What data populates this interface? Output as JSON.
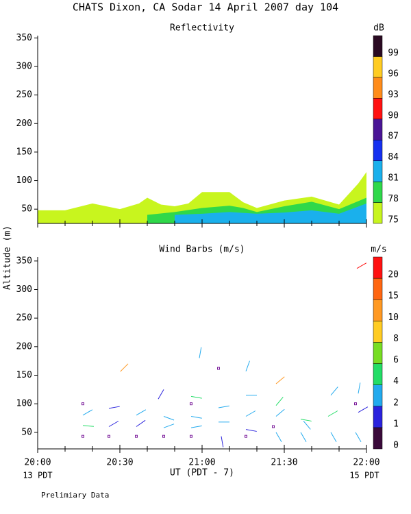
{
  "title": "CHATS Dixon, CA  Sodar  14 April 2007  day 104",
  "y_label": "Altitude (m)",
  "x_label": "UT  (PDT - 7)",
  "x_start_label": "13 PDT",
  "x_end_label": "15 PDT",
  "footnote": "Prelimiary Data",
  "chart_data": [
    {
      "type": "contour",
      "title": "Reflectivity",
      "xlim": [
        0,
        120
      ],
      "ylim": [
        25,
        354
      ],
      "xticks": [
        {
          "value": 0,
          "label": "20:00"
        },
        {
          "value": 30,
          "label": "20:30"
        },
        {
          "value": 60,
          "label": "21:00"
        },
        {
          "value": 90,
          "label": "21:30"
        },
        {
          "value": 120,
          "label": "22:00"
        }
      ],
      "xminorticks": [
        10,
        20,
        40,
        50,
        70,
        80,
        100,
        110
      ],
      "yticks": [
        50,
        100,
        150,
        200,
        250,
        300,
        350
      ],
      "colorbar": {
        "unit": "dB",
        "levels": [
          75,
          78,
          81,
          84,
          87,
          90,
          93,
          96,
          99
        ],
        "colors": [
          "#c8f51e",
          "#2fd84a",
          "#1ab0ec",
          "#1530f0",
          "#4a1596",
          "#ff1111",
          "#ff8c1a",
          "#ffcc22",
          "#2a0a22"
        ]
      },
      "series": [
        {
          "color": "#c8f51e",
          "x": [
            0,
            10,
            20,
            30,
            37,
            40,
            45,
            50,
            55,
            60,
            70,
            75,
            80,
            90,
            100,
            110,
            117,
            120
          ],
          "values": [
            48,
            48,
            60,
            50,
            60,
            70,
            58,
            55,
            60,
            80,
            80,
            62,
            52,
            65,
            72,
            58,
            95,
            115
          ]
        },
        {
          "color": "#2fd84a",
          "x": [
            40,
            50,
            60,
            70,
            75,
            80,
            90,
            100,
            110,
            120
          ],
          "values": [
            40,
            45,
            52,
            56,
            52,
            45,
            55,
            63,
            50,
            70
          ]
        },
        {
          "color": "#1ab0ec",
          "x": [
            50,
            60,
            70,
            80,
            90,
            100,
            110,
            120
          ],
          "values": [
            40,
            42,
            45,
            42,
            44,
            48,
            42,
            60
          ]
        }
      ]
    },
    {
      "type": "barbs",
      "title": "Wind Barbs (m/s)",
      "xlim": [
        0,
        120
      ],
      "ylim": [
        21,
        357
      ],
      "xticks": [
        {
          "value": 0,
          "label": "20:00"
        },
        {
          "value": 30,
          "label": "20:30"
        },
        {
          "value": 60,
          "label": "21:00"
        },
        {
          "value": 90,
          "label": "21:30"
        },
        {
          "value": 120,
          "label": "22:00"
        }
      ],
      "xminorticks": [
        10,
        20,
        40,
        50,
        70,
        80,
        100,
        110
      ],
      "yticks": [
        50,
        100,
        150,
        200,
        250,
        300,
        350
      ],
      "colorbar": {
        "unit": "m/s",
        "levels": [
          0,
          1,
          2,
          4,
          6,
          8,
          10,
          15,
          20
        ],
        "colors": [
          "#3a0a3a",
          "#2a22dd",
          "#22aaee",
          "#22dd66",
          "#77dd22",
          "#ffcc22",
          "#ff9922",
          "#ff6611",
          "#ff1111"
        ]
      },
      "x": [
        16.5,
        16.5,
        16.5,
        16.5,
        26,
        26,
        26,
        33,
        36,
        36,
        36,
        46,
        46,
        46,
        46,
        56,
        56,
        56,
        56,
        56,
        59,
        66,
        66,
        66,
        67,
        76,
        76,
        76,
        76,
        76,
        87,
        87,
        87,
        86,
        87,
        96,
        97,
        96,
        107,
        106,
        107,
        116.5,
        116,
        117,
        117,
        116
      ],
      "values": [
        100,
        43,
        62,
        80,
        92,
        60,
        43,
        170,
        43,
        80,
        60,
        125,
        78,
        58,
        43,
        113,
        100,
        78,
        58,
        43,
        180,
        162,
        93,
        68,
        43,
        157,
        115,
        78,
        55,
        43,
        135,
        97,
        78,
        60,
        50,
        73,
        70,
        50,
        115,
        78,
        50,
        337,
        100,
        118,
        85,
        50
      ],
      "speed": [
        0,
        0,
        5,
        3,
        1.5,
        1.5,
        0,
        12,
        0,
        3,
        1.5,
        1.5,
        3,
        3,
        0,
        5,
        0,
        3,
        3,
        0,
        3,
        0,
        3,
        3,
        1.5,
        3,
        3,
        3,
        1.5,
        0,
        12,
        5,
        3,
        0,
        3,
        5,
        3,
        3,
        3,
        5,
        3,
        22,
        0,
        3,
        1.5,
        3
      ],
      "direction": [
        0,
        0,
        95,
        60,
        80,
        60,
        0,
        225,
        0,
        60,
        55,
        210,
        110,
        70,
        0,
        100,
        0,
        100,
        80,
        0,
        10,
        0,
        80,
        90,
        170,
        20,
        90,
        60,
        100,
        0,
        50,
        40,
        50,
        0,
        150,
        100,
        140,
        150,
        40,
        60,
        150,
        60,
        0,
        10,
        60,
        150
      ]
    }
  ]
}
